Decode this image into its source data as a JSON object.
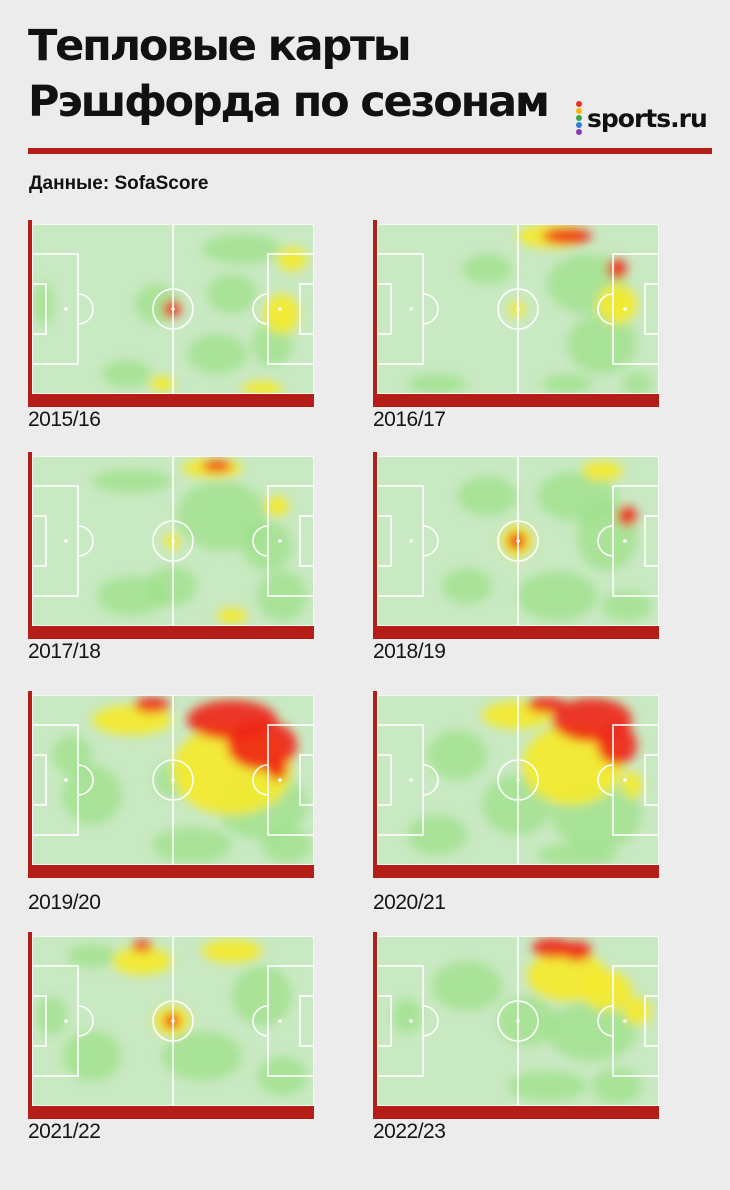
{
  "header": {
    "title_line1": "Тепловые карты",
    "title_line2": "Рэшфорда по сезонам",
    "source": "Данные: SofaScore",
    "logo_text": "sports.ru"
  },
  "colors": {
    "accent_red": "#b51d18",
    "pitch_green": "#c9e9c2",
    "pitch_lines": "#ffffff",
    "heat_low": "#9ee08a",
    "heat_mid": "#f6ea2a",
    "heat_high": "#f28a1a",
    "heat_max": "#ef2516",
    "logo_dots": [
      "#e8312a",
      "#f6b800",
      "#38a84a",
      "#2f7fd1",
      "#8a3ab9"
    ]
  },
  "chart_data": [
    {
      "type": "heatmap",
      "season": "2015/16",
      "hotspots": [
        {
          "zone": "центральный круг",
          "intensity": 1.0
        },
        {
          "zone": "левый нижний сектор",
          "intensity": 0.55
        },
        {
          "zone": "чужая штрафная",
          "intensity": 0.5
        },
        {
          "zone": "правая верхняя зона",
          "intensity": 0.45
        }
      ]
    },
    {
      "type": "heatmap",
      "season": "2016/17",
      "hotspots": [
        {
          "zone": "верх правой половины",
          "intensity": 0.95
        },
        {
          "zone": "правый фланг у штрафной",
          "intensity": 0.7
        },
        {
          "zone": "центральный круг",
          "intensity": 0.45
        }
      ]
    },
    {
      "type": "heatmap",
      "season": "2017/18",
      "hotspots": [
        {
          "zone": "верхняя бровка правой половины",
          "intensity": 0.9
        },
        {
          "zone": "центральный круг",
          "intensity": 0.6
        },
        {
          "zone": "чужая штрафная",
          "intensity": 0.5
        }
      ]
    },
    {
      "type": "heatmap",
      "season": "2018/19",
      "hotspots": [
        {
          "zone": "центральный круг",
          "intensity": 0.9
        },
        {
          "zone": "левый фланг атаки",
          "intensity": 0.75
        },
        {
          "zone": "чужая штрафная",
          "intensity": 0.55
        }
      ]
    },
    {
      "type": "heatmap",
      "season": "2019/20",
      "hotspots": [
        {
          "zone": "левый фланг атаки (верх правой половины)",
          "intensity": 1.0
        },
        {
          "zone": "подход к чужой штрафной",
          "intensity": 0.95
        },
        {
          "zone": "верх левой половины",
          "intensity": 0.8
        }
      ]
    },
    {
      "type": "heatmap",
      "season": "2020/21",
      "hotspots": [
        {
          "zone": "левый фланг атаки (верх правой половины)",
          "intensity": 1.0
        },
        {
          "zone": "подход к чужой штрафной",
          "intensity": 0.85
        },
        {
          "zone": "правая половина поля в целом",
          "intensity": 0.6
        }
      ]
    },
    {
      "type": "heatmap",
      "season": "2021/22",
      "hotspots": [
        {
          "zone": "центральный круг",
          "intensity": 0.7
        },
        {
          "zone": "верх поля",
          "intensity": 0.6
        },
        {
          "zone": "распределение по всему полю",
          "intensity": 0.45
        }
      ]
    },
    {
      "type": "heatmap",
      "season": "2022/23",
      "hotspots": [
        {
          "zone": "левый фланг атаки (верх правой половины)",
          "intensity": 1.0
        },
        {
          "zone": "подход к чужой штрафной",
          "intensity": 0.75
        },
        {
          "zone": "центр поля",
          "intensity": 0.4
        }
      ]
    }
  ]
}
